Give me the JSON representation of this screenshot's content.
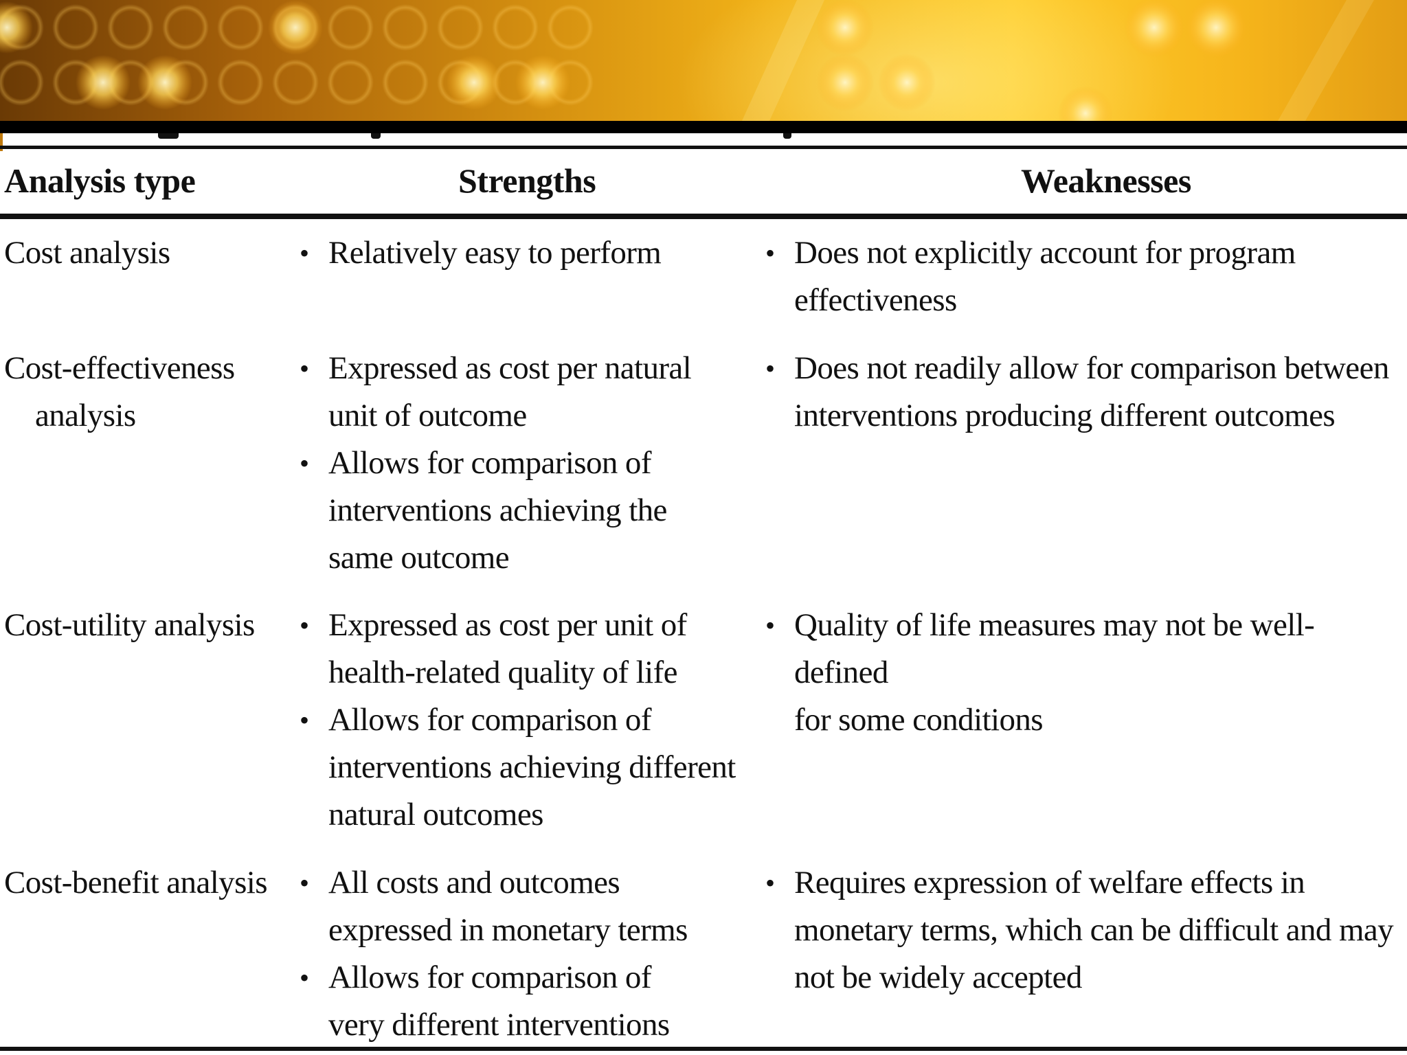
{
  "table": {
    "headers": {
      "analysis_type": "Analysis type",
      "strengths": "Strengths",
      "weaknesses": "Weaknesses"
    },
    "rows": [
      {
        "type": [
          "Cost analysis"
        ],
        "strengths": [
          "Relatively easy to perform"
        ],
        "weaknesses": [
          "Does not explicitly account for program\neffectiveness"
        ]
      },
      {
        "type": [
          "Cost-effectiveness",
          "analysis"
        ],
        "strengths": [
          "Expressed as cost per natural\nunit of outcome",
          "Allows for comparison of\ninterventions achieving the\nsame outcome"
        ],
        "weaknesses": [
          "Does not readily allow for comparison between\ninterventions producing different outcomes"
        ]
      },
      {
        "type": [
          "Cost-utility analysis"
        ],
        "strengths": [
          "Expressed as cost per unit of\nhealth-related quality of life",
          "Allows for comparison of\ninterventions achieving different\nnatural outcomes"
        ],
        "weaknesses": [
          "Quality of life measures may not be well-defined\nfor some conditions"
        ]
      },
      {
        "type": [
          "Cost-benefit analysis"
        ],
        "strengths": [
          "All costs and outcomes\nexpressed in monetary terms",
          "Allows for comparison of\nvery different interventions"
        ],
        "weaknesses": [
          "Requires expression of welfare effects in\nmonetary terms, which can be difficult and may\nnot be widely accepted"
        ]
      }
    ]
  },
  "banner": {
    "colors": {
      "dark": "#6a3a05",
      "mid": "#d48f10",
      "bright": "#ffcd2c",
      "band": "#000000"
    }
  }
}
